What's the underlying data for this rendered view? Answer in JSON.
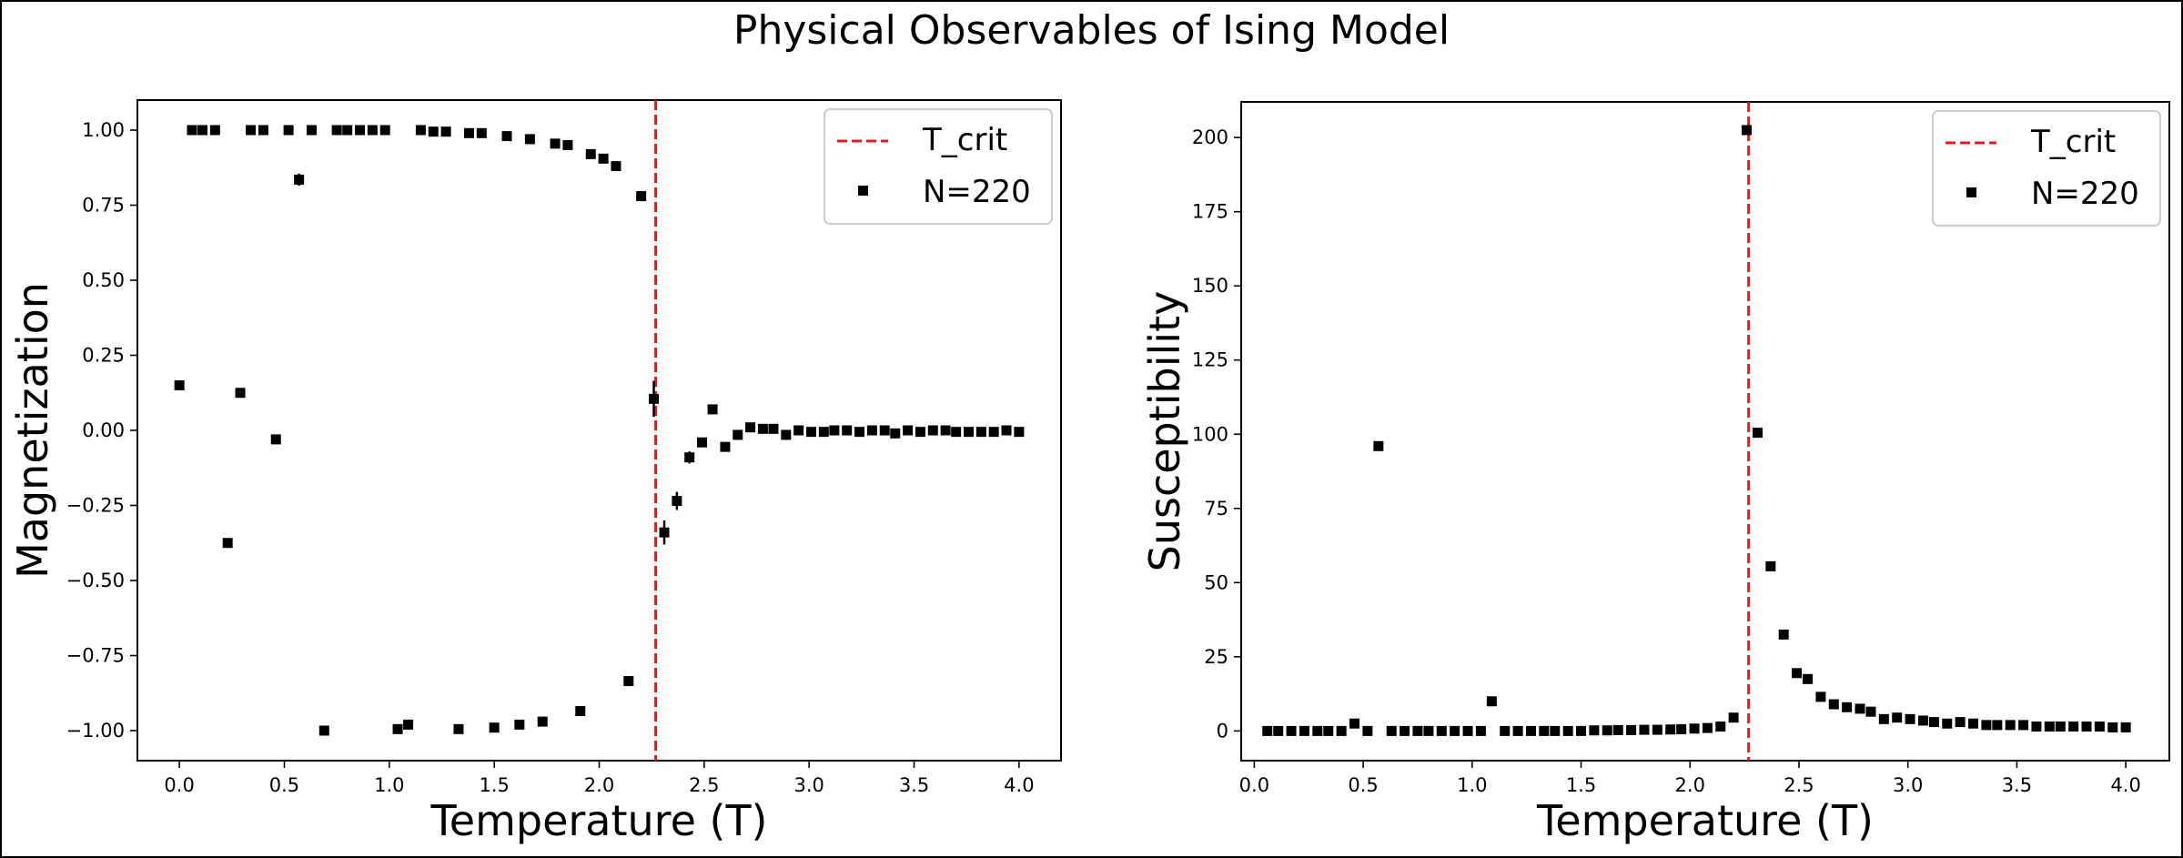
{
  "figure": {
    "title": "Physical Observables of Ising Model"
  },
  "chart_data": [
    {
      "type": "scatter",
      "xlabel": "Temperature (T)",
      "ylabel": "Magnetization",
      "xlim": [
        -0.2,
        4.2
      ],
      "ylim": [
        -1.1,
        1.1
      ],
      "xticks": [
        "0.0",
        "0.5",
        "1.0",
        "1.5",
        "2.0",
        "2.5",
        "3.0",
        "3.5",
        "4.0"
      ],
      "xtick_values": [
        0,
        0.5,
        1,
        1.5,
        2,
        2.5,
        3,
        3.5,
        4
      ],
      "yticks": [
        "−1.00",
        "−0.75",
        "−0.50",
        "−0.25",
        "0.00",
        "0.25",
        "0.50",
        "0.75",
        "1.00"
      ],
      "ytick_values": [
        -1,
        -0.75,
        -0.5,
        -0.25,
        0,
        0.25,
        0.5,
        0.75,
        1
      ],
      "critical_line": {
        "name": "T_crit",
        "x": 2.269,
        "color": "#e41a1c",
        "style": "dashed"
      },
      "series": [
        {
          "name": "N=220",
          "color": "#000000",
          "marker": "square",
          "x": [
            0.0,
            0.06,
            0.11,
            0.17,
            0.23,
            0.29,
            0.34,
            0.4,
            0.46,
            0.52,
            0.57,
            0.63,
            0.69,
            0.75,
            0.8,
            0.86,
            0.92,
            0.98,
            1.04,
            1.09,
            1.15,
            1.21,
            1.27,
            1.33,
            1.38,
            1.44,
            1.5,
            1.56,
            1.62,
            1.67,
            1.73,
            1.79,
            1.85,
            1.91,
            1.96,
            2.02,
            2.08,
            2.14,
            2.2,
            2.26,
            2.31,
            2.37,
            2.43,
            2.49,
            2.54,
            2.6,
            2.66,
            2.72,
            2.78,
            2.83,
            2.89,
            2.95,
            3.01,
            3.07,
            3.12,
            3.18,
            3.24,
            3.3,
            3.36,
            3.41,
            3.47,
            3.53,
            3.59,
            3.65,
            3.7,
            3.76,
            3.82,
            3.88,
            3.94,
            4.0
          ],
          "y": [
            0.15,
            1.0,
            1.0,
            1.0,
            -0.375,
            0.125,
            1.0,
            1.0,
            -0.03,
            1.0,
            0.835,
            1.0,
            -1.0,
            1.0,
            1.0,
            1.0,
            1.0,
            1.0,
            -0.995,
            -0.98,
            1.0,
            0.995,
            0.995,
            -0.995,
            0.99,
            0.99,
            -0.99,
            0.98,
            -0.98,
            0.97,
            -0.97,
            0.955,
            0.95,
            -0.935,
            0.92,
            0.905,
            0.88,
            -0.835,
            0.78,
            0.105,
            -0.34,
            -0.235,
            -0.09,
            -0.04,
            0.07,
            -0.055,
            -0.015,
            0.01,
            0.005,
            0.005,
            -0.015,
            0.0,
            -0.005,
            -0.005,
            0.0,
            0.0,
            -0.005,
            0.0,
            0.0,
            -0.01,
            0.0,
            -0.005,
            0.0,
            0.0,
            -0.005,
            -0.005,
            -0.005,
            -0.005,
            0.0,
            -0.005
          ],
          "yerr": [
            0,
            0,
            0,
            0,
            0,
            0,
            0,
            0,
            0,
            0,
            0.02,
            0,
            0,
            0,
            0,
            0,
            0,
            0,
            0,
            0,
            0,
            0,
            0,
            0,
            0,
            0,
            0,
            0,
            0,
            0,
            0,
            0,
            0,
            0,
            0,
            0,
            0,
            0,
            0,
            0.06,
            0.04,
            0.03,
            0.02,
            0.01,
            0.01,
            0.01,
            0,
            0,
            0,
            0,
            0,
            0,
            0,
            0,
            0,
            0,
            0,
            0,
            0,
            0,
            0,
            0,
            0,
            0,
            0,
            0,
            0,
            0,
            0,
            0
          ]
        }
      ],
      "legend": {
        "position": "top-right",
        "entries": [
          "T_crit",
          "N=220"
        ]
      }
    },
    {
      "type": "scatter",
      "xlabel": "Temperature (T)",
      "ylabel": "Susceptibility",
      "xlim": [
        -0.06,
        4.2
      ],
      "ylim": [
        -10,
        212
      ],
      "xticks": [
        "0.0",
        "0.5",
        "1.0",
        "1.5",
        "2.0",
        "2.5",
        "3.0",
        "3.5",
        "4.0"
      ],
      "xtick_values": [
        0,
        0.5,
        1,
        1.5,
        2,
        2.5,
        3,
        3.5,
        4
      ],
      "yticks": [
        "0",
        "25",
        "50",
        "75",
        "100",
        "125",
        "150",
        "175",
        "200"
      ],
      "ytick_values": [
        0,
        25,
        50,
        75,
        100,
        125,
        150,
        175,
        200
      ],
      "critical_line": {
        "name": "T_crit",
        "x": 2.269,
        "color": "#e41a1c",
        "style": "dashed"
      },
      "series": [
        {
          "name": "N=220",
          "color": "#000000",
          "marker": "square",
          "x": [
            0.06,
            0.11,
            0.17,
            0.23,
            0.29,
            0.34,
            0.4,
            0.46,
            0.52,
            0.57,
            0.63,
            0.69,
            0.75,
            0.8,
            0.86,
            0.92,
            0.98,
            1.04,
            1.09,
            1.15,
            1.21,
            1.27,
            1.33,
            1.38,
            1.44,
            1.5,
            1.56,
            1.62,
            1.67,
            1.73,
            1.79,
            1.85,
            1.91,
            1.96,
            2.02,
            2.08,
            2.14,
            2.2,
            2.26,
            2.31,
            2.37,
            2.43,
            2.49,
            2.54,
            2.6,
            2.66,
            2.72,
            2.78,
            2.83,
            2.89,
            2.95,
            3.01,
            3.07,
            3.12,
            3.18,
            3.24,
            3.3,
            3.36,
            3.41,
            3.47,
            3.53,
            3.59,
            3.65,
            3.7,
            3.76,
            3.82,
            3.88,
            3.94,
            4.0
          ],
          "y": [
            0,
            0,
            0,
            0,
            0,
            0,
            0,
            2.5,
            0,
            96,
            0,
            0,
            0,
            0,
            0,
            0,
            0,
            0,
            10,
            0,
            0,
            0,
            0,
            0,
            0,
            0,
            0.2,
            0.2,
            0.3,
            0.3,
            0.4,
            0.4,
            0.5,
            0.6,
            0.8,
            1.0,
            1.5,
            4.5,
            202.5,
            100.5,
            55.5,
            32.5,
            19.5,
            17.5,
            11.5,
            9,
            8,
            7.5,
            6.5,
            4,
            4.5,
            4,
            3.5,
            3,
            2.5,
            3,
            2.5,
            2,
            2,
            2,
            2,
            1.5,
            1.5,
            1.5,
            1.5,
            1.5,
            1.5,
            1.2,
            1.2
          ],
          "yerr": []
        }
      ],
      "legend": {
        "position": "top-right",
        "entries": [
          "T_crit",
          "N=220"
        ]
      }
    }
  ]
}
